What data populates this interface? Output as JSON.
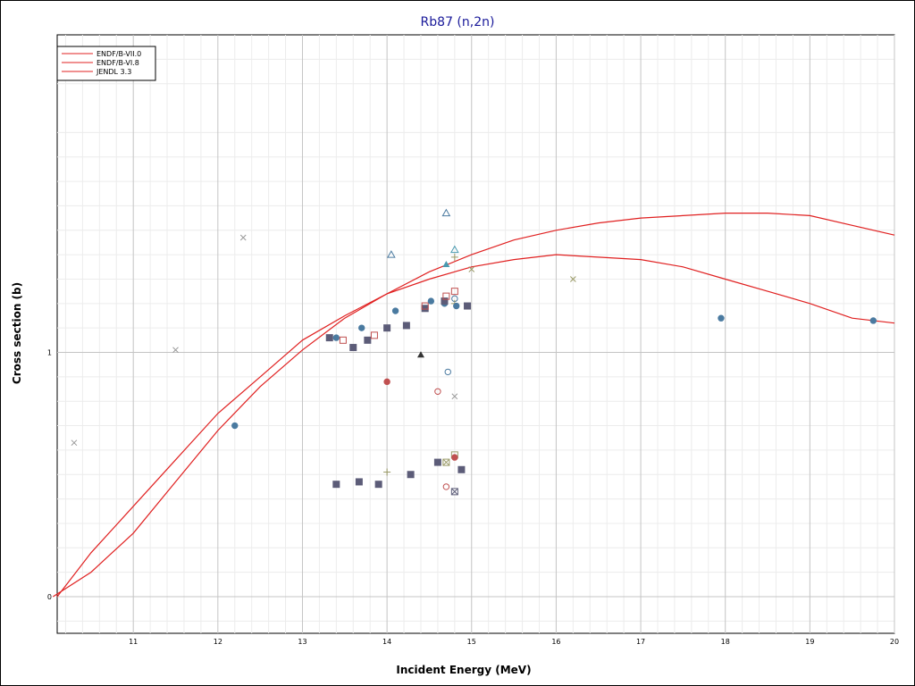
{
  "chart_data": {
    "type": "line",
    "title": "Rb87 (n,2n)",
    "xlabel": "Incident Energy (MeV)",
    "ylabel": "Cross section (b)",
    "xlim": [
      10.1,
      20
    ],
    "ylim": [
      -0.15,
      2.3
    ],
    "x_ticks": [
      11,
      12,
      13,
      14,
      15,
      16,
      17,
      18,
      19,
      20
    ],
    "y_ticks": [
      {
        "value": 0,
        "label": "0"
      },
      {
        "value": 1,
        "label": "1"
      }
    ],
    "grid": true,
    "legend_position": "top-left",
    "series": [
      {
        "name": "ENDF/B-VII.0",
        "color": "#e02020",
        "x": [
          10.1,
          10.5,
          11.0,
          11.5,
          12.0,
          12.5,
          13.0,
          13.5,
          14.0,
          14.5,
          15.0,
          15.5,
          16.0,
          16.5,
          17.0,
          17.5,
          18.0,
          18.5,
          19.0,
          19.5,
          20.0
        ],
        "y": [
          0.0,
          0.18,
          0.37,
          0.56,
          0.75,
          0.9,
          1.05,
          1.15,
          1.24,
          1.3,
          1.35,
          1.38,
          1.4,
          1.39,
          1.38,
          1.35,
          1.3,
          1.25,
          1.2,
          1.14,
          1.12
        ]
      },
      {
        "name": "ENDF/B-VI.8",
        "color": "#e02020",
        "x": [
          10.05,
          10.5,
          11.0,
          11.5,
          12.0,
          12.5,
          13.0,
          13.5,
          14.0,
          14.5,
          15.0,
          15.5,
          16.0,
          16.5,
          17.0,
          17.5,
          18.0,
          18.5,
          19.0,
          19.5,
          20.0
        ],
        "y": [
          0.0,
          0.1,
          0.26,
          0.47,
          0.68,
          0.86,
          1.01,
          1.14,
          1.24,
          1.33,
          1.4,
          1.46,
          1.5,
          1.53,
          1.55,
          1.56,
          1.57,
          1.57,
          1.56,
          1.52,
          1.48
        ]
      },
      {
        "name": "JENDL 3.3",
        "color": "#e02020",
        "x": [],
        "y": []
      }
    ],
    "experimental_points": [
      {
        "x": 10.3,
        "y": 0.63,
        "marker": "x",
        "color": "#999999"
      },
      {
        "x": 11.5,
        "y": 1.01,
        "marker": "x",
        "color": "#999999"
      },
      {
        "x": 12.2,
        "y": 0.7,
        "marker": "circle",
        "color": "#4a7aa0"
      },
      {
        "x": 12.3,
        "y": 1.47,
        "marker": "x",
        "color": "#999999"
      },
      {
        "x": 13.32,
        "y": 1.06,
        "marker": "square",
        "color": "#5c5c78"
      },
      {
        "x": 13.4,
        "y": 1.06,
        "marker": "circle",
        "color": "#4a7aa0"
      },
      {
        "x": 13.48,
        "y": 1.05,
        "marker": "square-open",
        "color": "#c05050"
      },
      {
        "x": 13.6,
        "y": 1.02,
        "marker": "square",
        "color": "#5c5c78"
      },
      {
        "x": 13.7,
        "y": 1.1,
        "marker": "circle",
        "color": "#4a7aa0"
      },
      {
        "x": 13.77,
        "y": 1.05,
        "marker": "square",
        "color": "#5c5c78"
      },
      {
        "x": 13.85,
        "y": 1.07,
        "marker": "square-open",
        "color": "#c05050"
      },
      {
        "x": 14.0,
        "y": 1.1,
        "marker": "square",
        "color": "#5c5c78"
      },
      {
        "x": 14.05,
        "y": 1.4,
        "marker": "triangle-open",
        "color": "#4a7aa0"
      },
      {
        "x": 14.1,
        "y": 1.17,
        "marker": "circle",
        "color": "#4a7aa0"
      },
      {
        "x": 14.23,
        "y": 1.11,
        "marker": "square",
        "color": "#5c5c78"
      },
      {
        "x": 14.0,
        "y": 0.88,
        "marker": "circle",
        "color": "#c05050"
      },
      {
        "x": 14.4,
        "y": 0.99,
        "marker": "triangle",
        "color": "#333333"
      },
      {
        "x": 14.45,
        "y": 1.18,
        "marker": "square",
        "color": "#5c5c78"
      },
      {
        "x": 14.45,
        "y": 1.19,
        "marker": "square-open",
        "color": "#c05050"
      },
      {
        "x": 14.52,
        "y": 1.21,
        "marker": "circle",
        "color": "#4a7aa0"
      },
      {
        "x": 14.6,
        "y": 0.84,
        "marker": "circle-open",
        "color": "#c05050"
      },
      {
        "x": 14.68,
        "y": 1.2,
        "marker": "circle",
        "color": "#4a7aa0"
      },
      {
        "x": 14.68,
        "y": 1.21,
        "marker": "square",
        "color": "#5c5c78"
      },
      {
        "x": 14.7,
        "y": 1.36,
        "marker": "triangle",
        "color": "#4a9ab0"
      },
      {
        "x": 14.7,
        "y": 1.57,
        "marker": "triangle-open",
        "color": "#4a7aa0"
      },
      {
        "x": 14.7,
        "y": 1.23,
        "marker": "square-open",
        "color": "#c05050"
      },
      {
        "x": 14.72,
        "y": 0.92,
        "marker": "circle-open",
        "color": "#4a7aa0"
      },
      {
        "x": 14.8,
        "y": 1.42,
        "marker": "triangle-open",
        "color": "#4a9ab0"
      },
      {
        "x": 14.8,
        "y": 1.39,
        "marker": "plus",
        "color": "#999966"
      },
      {
        "x": 14.8,
        "y": 1.25,
        "marker": "square-open",
        "color": "#c05050"
      },
      {
        "x": 14.8,
        "y": 1.22,
        "marker": "circle-open",
        "color": "#4a7aa0"
      },
      {
        "x": 14.8,
        "y": 1.2,
        "marker": "plus",
        "color": "#999966"
      },
      {
        "x": 14.82,
        "y": 1.19,
        "marker": "circle",
        "color": "#4a7aa0"
      },
      {
        "x": 14.8,
        "y": 0.82,
        "marker": "x",
        "color": "#999999"
      },
      {
        "x": 14.95,
        "y": 1.19,
        "marker": "square",
        "color": "#5c5c78"
      },
      {
        "x": 15.0,
        "y": 1.34,
        "marker": "x",
        "color": "#999966"
      },
      {
        "x": 16.2,
        "y": 1.3,
        "marker": "x",
        "color": "#999966"
      },
      {
        "x": 17.95,
        "y": 1.14,
        "marker": "circle",
        "color": "#4a7aa0"
      },
      {
        "x": 19.75,
        "y": 1.13,
        "marker": "circle",
        "color": "#4a7aa0"
      },
      {
        "x": 13.4,
        "y": 0.46,
        "marker": "square",
        "color": "#5c5c78"
      },
      {
        "x": 13.67,
        "y": 0.47,
        "marker": "square",
        "color": "#5c5c78"
      },
      {
        "x": 13.9,
        "y": 0.46,
        "marker": "square",
        "color": "#5c5c78"
      },
      {
        "x": 14.0,
        "y": 0.51,
        "marker": "plus",
        "color": "#999966"
      },
      {
        "x": 14.28,
        "y": 0.5,
        "marker": "square",
        "color": "#5c5c78"
      },
      {
        "x": 14.6,
        "y": 0.55,
        "marker": "square",
        "color": "#5c5c78"
      },
      {
        "x": 14.7,
        "y": 0.55,
        "marker": "square-x",
        "color": "#999966"
      },
      {
        "x": 14.7,
        "y": 0.45,
        "marker": "circle-open",
        "color": "#c05050"
      },
      {
        "x": 14.8,
        "y": 0.58,
        "marker": "square-open",
        "color": "#999966"
      },
      {
        "x": 14.8,
        "y": 0.57,
        "marker": "circle",
        "color": "#c05050"
      },
      {
        "x": 14.8,
        "y": 0.43,
        "marker": "square-x",
        "color": "#5c5c78"
      },
      {
        "x": 14.88,
        "y": 0.52,
        "marker": "square",
        "color": "#5c5c78"
      }
    ]
  }
}
